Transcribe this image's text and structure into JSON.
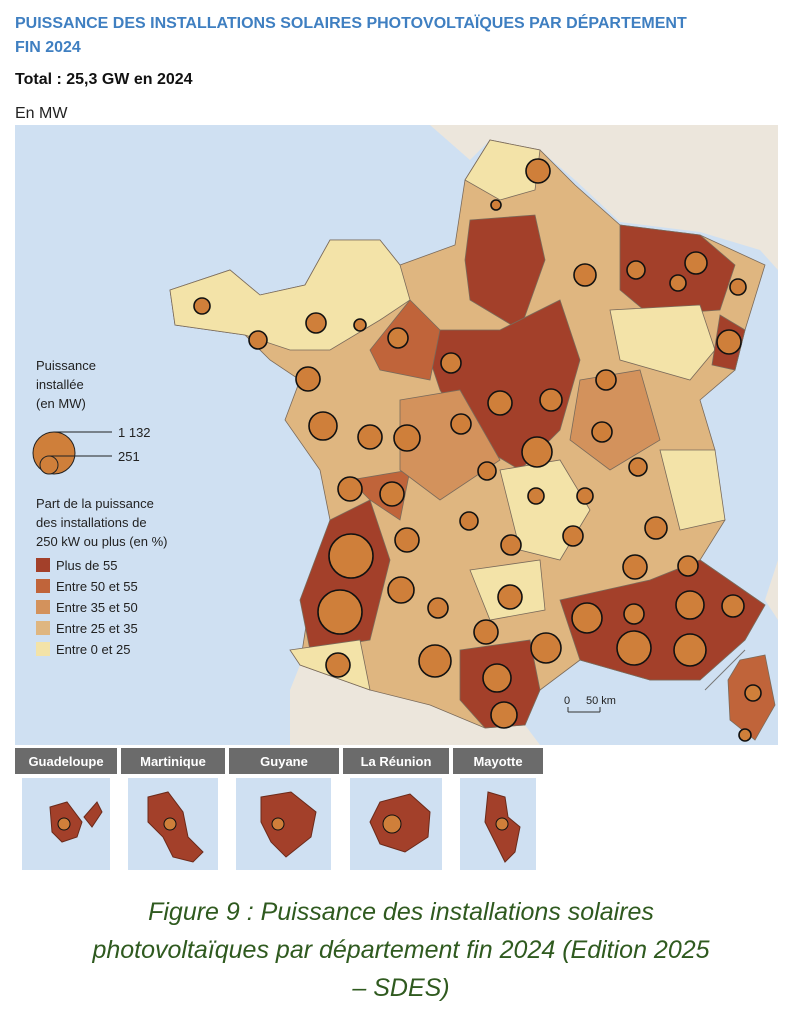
{
  "header": {
    "title": [
      "PUISSANCE DES INSTALLATIONS SOLAIRES PHOTOVOLTAÏQUES PAR DÉPARTEMENT",
      "FIN 2024"
    ],
    "total": "Total : 25,3 GW en 2024",
    "unit": "En MW"
  },
  "legend": {
    "size_title": [
      "Puissance",
      "installée",
      "(en MW)"
    ],
    "size_values": [
      "1 132",
      "251"
    ],
    "color_title": [
      "Part de la puissance",
      "des installations de",
      "250 kW ou plus (en %)"
    ],
    "classes": [
      {
        "label": "Plus de 55",
        "color": "#a3402a"
      },
      {
        "label": "Entre 50 et 55",
        "color": "#c0643a"
      },
      {
        "label": "Entre 35 et 50",
        "color": "#d3925c"
      },
      {
        "label": "Entre 25 et 35",
        "color": "#dfb680"
      },
      {
        "label": "Entre 0 et 25",
        "color": "#f3e3a8"
      }
    ]
  },
  "scale": [
    "0",
    "50 km"
  ],
  "insets": [
    "Guadeloupe",
    "Martinique",
    "Guyane",
    "La Réunion",
    "Mayotte"
  ],
  "caption": [
    "Figure 9 : Puissance des installations solaires",
    "photovoltaïques par département fin 2024 (Edition 2025",
    "– SDES)"
  ]
}
